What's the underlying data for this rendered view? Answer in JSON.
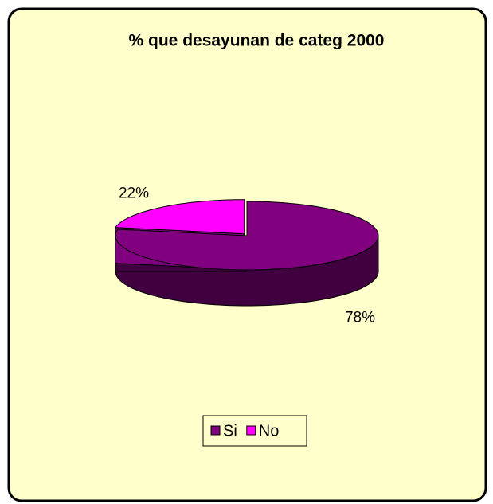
{
  "chart_data": {
    "type": "pie3d",
    "title": "% que desayunan de categ 2000",
    "categories": [
      "Si",
      "No"
    ],
    "values": [
      78,
      22
    ],
    "value_labels": [
      "78%",
      "22%"
    ],
    "colors": [
      "#800080",
      "#ff00ff"
    ],
    "legend": "bottom"
  }
}
